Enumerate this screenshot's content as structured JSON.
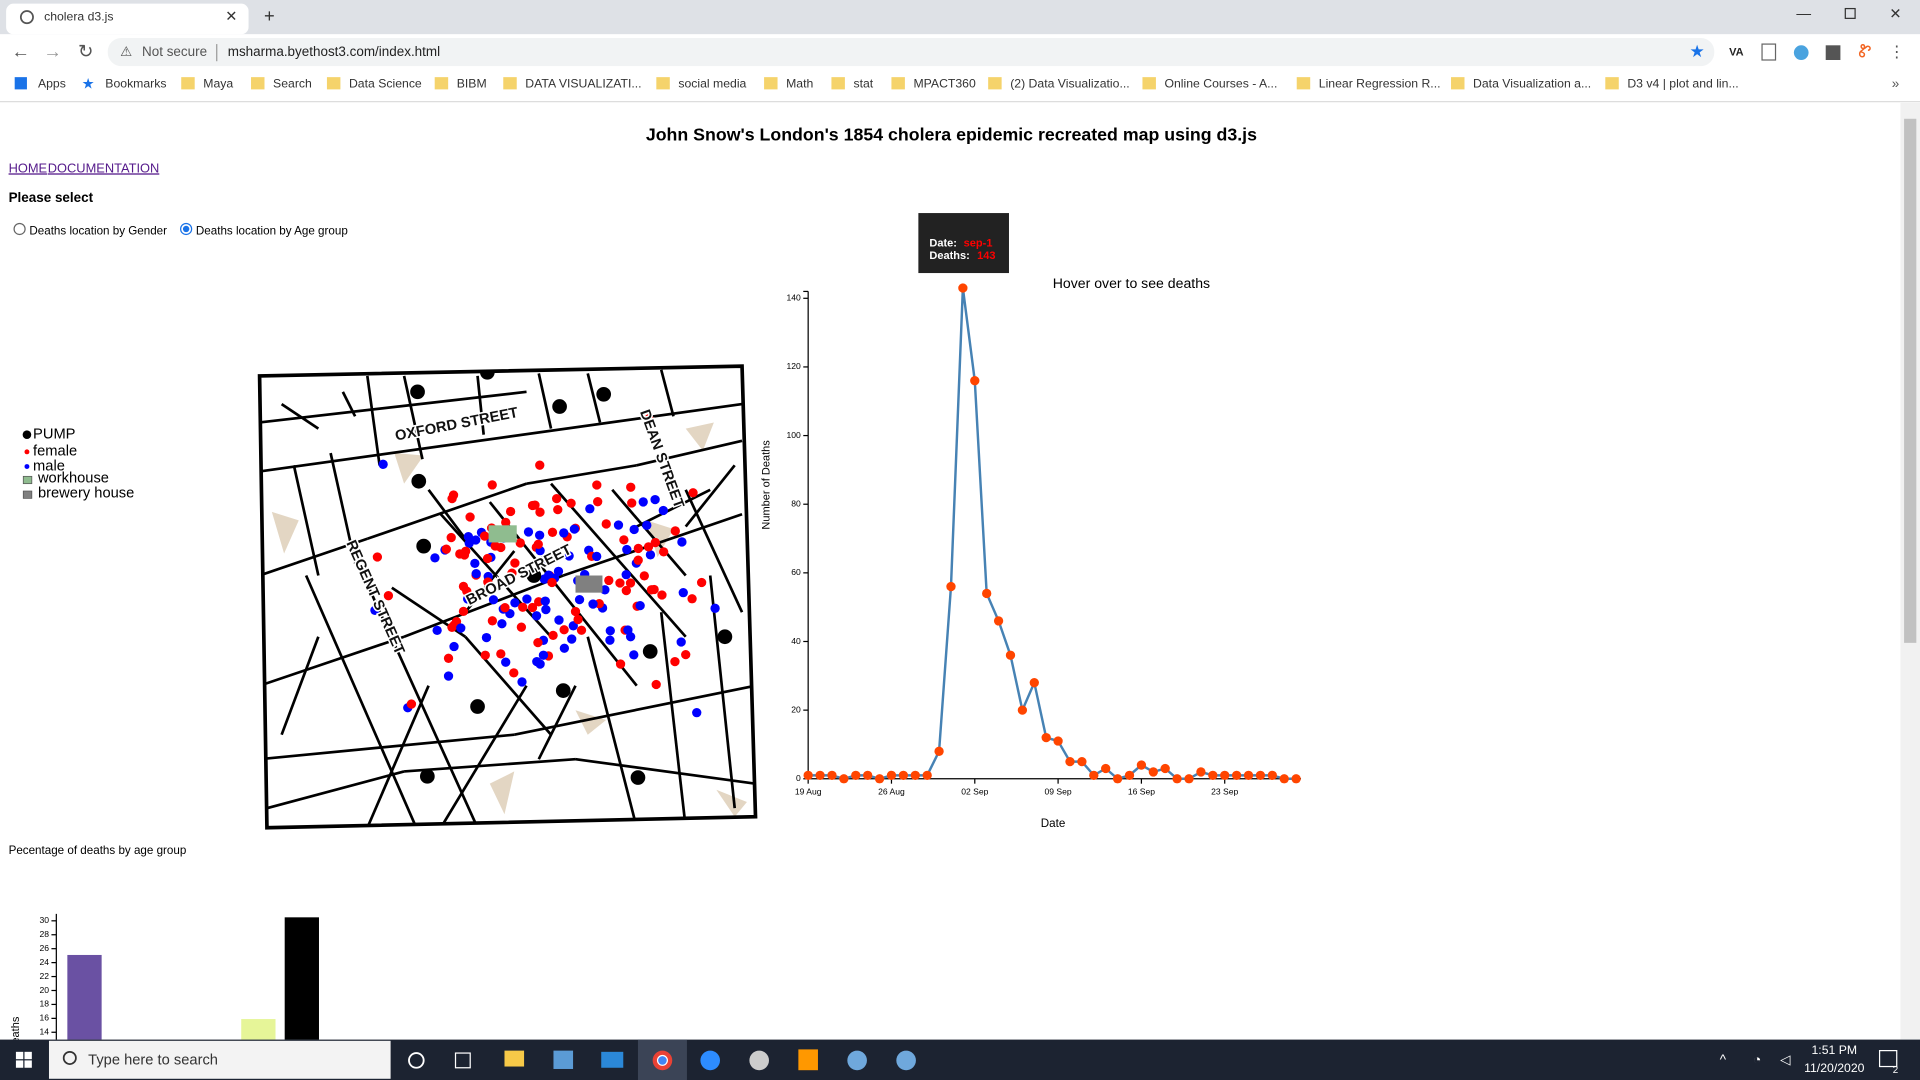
{
  "browser": {
    "tab_title": "cholera d3.js",
    "security": "Not secure",
    "url": "msharma.byethost3.com/index.html",
    "bookmarks": [
      "Apps",
      "Bookmarks",
      "Maya",
      "Search",
      "Data Science",
      "BIBM",
      "DATA VISUALIZATI...",
      "social media",
      "Math",
      "stat",
      "MPACT360",
      "(2) Data Visualizatio...",
      "Online Courses - A...",
      "Linear Regression R...",
      "Data Visualization a...",
      "D3 v4 | plot and lin..."
    ]
  },
  "page": {
    "title": "John Snow's London's 1854 cholera epidemic recreated map using d3.js",
    "nav": [
      "HOME",
      "DOCUMENTATION"
    ],
    "prompt": "Please select",
    "options": [
      "Deaths location by Gender",
      "Deaths location by Age group"
    ],
    "selected_option": 1,
    "legend": [
      "PUMP",
      "female",
      "male",
      "workhouse",
      "brewery house"
    ],
    "map_labels": [
      "OXFORD STREET",
      "DEAN STREET",
      "REGENT STREET",
      "BROAD STREET"
    ],
    "tooltip": {
      "date_label": "Date:",
      "date": "sep-1",
      "deaths_label": "Deaths:"
    }
  },
  "chart_data": [
    {
      "type": "line",
      "title": "Hover over to see deaths",
      "xlabel": "Date",
      "ylabel": "Number of Deaths",
      "x": [
        "08-19",
        "08-20",
        "08-21",
        "08-22",
        "08-23",
        "08-24",
        "08-25",
        "08-26",
        "08-27",
        "08-28",
        "08-29",
        "08-30",
        "08-31",
        "09-01",
        "09-02",
        "09-03",
        "09-04",
        "09-05",
        "09-06",
        "09-07",
        "09-08",
        "09-09",
        "09-10",
        "09-11",
        "09-12",
        "09-13",
        "09-14",
        "09-15",
        "09-16",
        "09-17",
        "09-18",
        "09-19",
        "09-20",
        "09-21",
        "09-22",
        "09-23",
        "09-24",
        "09-25",
        "09-26",
        "09-27",
        "09-28",
        "09-29"
      ],
      "values": [
        1,
        1,
        1,
        0,
        1,
        1,
        0,
        1,
        1,
        1,
        1,
        8,
        56,
        143,
        116,
        54,
        46,
        36,
        20,
        28,
        12,
        11,
        5,
        5,
        1,
        3,
        0,
        1,
        4,
        2,
        3,
        0,
        0,
        2,
        1,
        1,
        1,
        1,
        1,
        1,
        0,
        0
      ],
      "color": "#4682b4",
      "marker_color": "#ff4500",
      "xlim": [
        "08-19",
        "09-29"
      ],
      "xticks": [
        {
          "value": "08-19",
          "label": "19 Aug"
        },
        {
          "value": "08-26",
          "label": "26 Aug"
        },
        {
          "value": "09-02",
          "label": "02 Sep"
        },
        {
          "value": "09-09",
          "label": "09 Sep"
        },
        {
          "value": "09-16",
          "label": "16 Sep"
        },
        {
          "value": "09-23",
          "label": "23 Sep"
        }
      ],
      "ylim": [
        0,
        142
      ],
      "yticks": [
        0,
        20,
        40,
        60,
        80,
        100,
        120,
        140
      ]
    },
    {
      "type": "bar",
      "title": "Pecentage of deaths by age group",
      "ylabel": "Number of deaths",
      "categories": [
        null,
        null,
        null,
        null,
        null,
        null
      ],
      "values": [
        25.1,
        null,
        null,
        null,
        15.9,
        30.5
      ],
      "colors": [
        "#6a51a3",
        null,
        null,
        null,
        "#e6f598",
        "#000000"
      ],
      "ylim": [
        0,
        31
      ],
      "yticks": [
        14,
        16,
        18,
        20,
        22,
        24,
        26,
        28,
        30
      ]
    }
  ],
  "taskbar": {
    "search": "Type here to search",
    "time": "1:51 PM",
    "date": "11/20/2020",
    "notifications": "2"
  }
}
